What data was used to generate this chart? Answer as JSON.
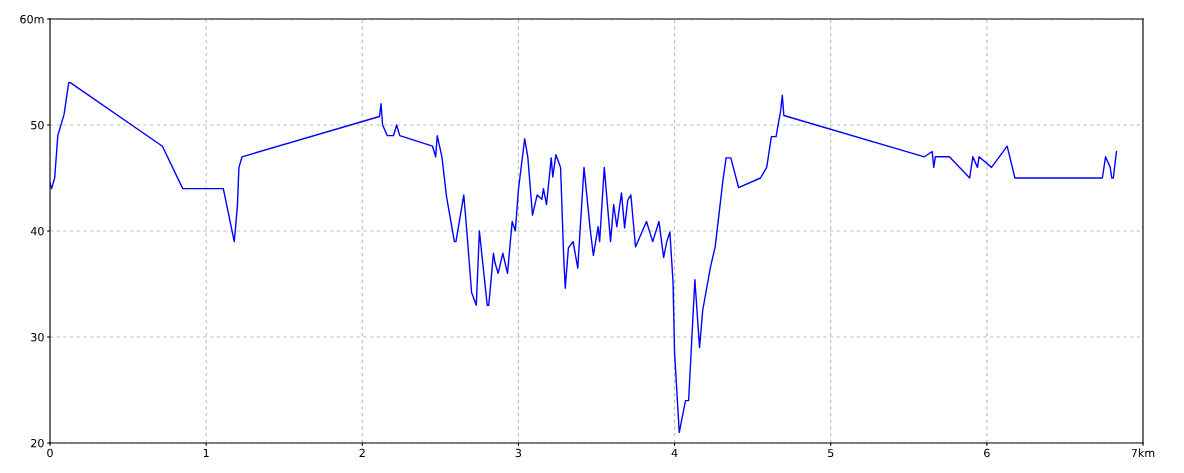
{
  "chart_data": {
    "type": "line",
    "x": [
      0,
      0.01,
      0.03,
      0.05,
      0.07,
      0.09,
      0.11,
      0.12,
      0.13,
      0.72,
      0.85,
      1.11,
      1.18,
      1.2,
      1.21,
      1.23,
      2.11,
      2.12,
      2.13,
      2.16,
      2.2,
      2.22,
      2.24,
      2.45,
      2.47,
      2.48,
      2.51,
      2.54,
      2.59,
      2.6,
      2.65,
      2.67,
      2.7,
      2.73,
      2.75,
      2.79,
      2.8,
      2.81,
      2.84,
      2.85,
      2.87,
      2.9,
      2.93,
      2.96,
      2.98,
      3.0,
      3.04,
      3.06,
      3.09,
      3.12,
      3.15,
      3.16,
      3.18,
      3.21,
      3.22,
      3.24,
      3.27,
      3.29,
      3.3,
      3.32,
      3.35,
      3.38,
      3.42,
      3.46,
      3.48,
      3.51,
      3.52,
      3.55,
      3.59,
      3.61,
      3.63,
      3.66,
      3.68,
      3.7,
      3.72,
      3.75,
      3.82,
      3.86,
      3.9,
      3.93,
      3.95,
      3.97,
      3.99,
      4.0,
      4.03,
      4.07,
      4.09,
      4.13,
      4.16,
      4.18,
      4.23,
      4.26,
      4.31,
      4.33,
      4.36,
      4.41,
      4.55,
      4.59,
      4.62,
      4.65,
      4.68,
      4.69,
      4.7,
      5.6,
      5.65,
      5.66,
      5.67,
      5.76,
      5.89,
      5.91,
      5.94,
      5.95,
      6.03,
      6.13,
      6.18,
      6.74,
      6.76,
      6.79,
      6.8,
      6.81,
      6.83
    ],
    "series": [
      {
        "color": "#0000ff",
        "values": [
          44.5,
          44,
          45,
          49,
          50,
          51,
          53,
          54,
          54,
          48,
          44,
          44,
          39,
          42.3,
          46,
          47,
          50.8,
          52,
          50,
          49,
          49,
          50,
          49,
          48,
          47,
          49,
          47,
          43.2,
          39,
          39,
          43.4,
          39.9,
          34.2,
          33,
          40,
          34.4,
          33,
          33,
          37.9,
          37,
          36,
          37.9,
          36,
          40.9,
          40,
          43.9,
          48.7,
          47,
          41.5,
          43.4,
          43,
          44,
          42.5,
          46.9,
          45.1,
          47.2,
          46,
          37.5,
          34.6,
          38.4,
          39,
          36.5,
          46,
          40.1,
          37.7,
          40.4,
          39,
          46,
          39,
          42.5,
          40.4,
          43.6,
          40.3,
          42.9,
          43.4,
          38.5,
          40.9,
          39,
          40.9,
          37.5,
          39,
          39.9,
          35.2,
          28.5,
          21,
          24,
          24,
          35.4,
          29,
          32.5,
          36.6,
          38.5,
          44.8,
          46.9,
          46.9,
          44.1,
          45,
          46,
          48.9,
          48.9,
          51.4,
          52.8,
          50.9,
          47,
          47.5,
          46,
          47,
          47,
          45,
          47,
          46,
          47,
          46,
          48,
          45,
          45,
          47,
          46,
          45,
          45,
          47.5
        ]
      }
    ],
    "xlim": [
      0,
      7
    ],
    "ylim": [
      20,
      60
    ],
    "xticks": [
      0,
      1,
      2,
      3,
      4,
      5,
      6,
      {
        "value": 7,
        "label": "7km"
      }
    ],
    "yticks": [
      20,
      30,
      40,
      50,
      {
        "value": 60,
        "label": "60m"
      }
    ],
    "grid": true,
    "marker": "none",
    "line_style": "solid"
  }
}
